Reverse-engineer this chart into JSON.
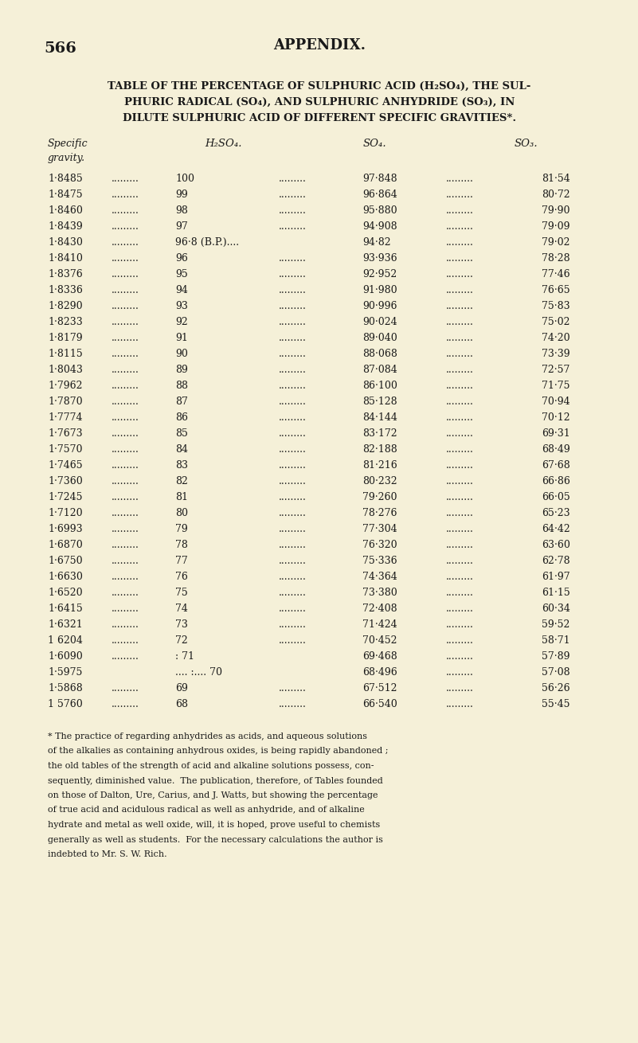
{
  "bg_color": "#f5f0d8",
  "text_color": "#1a1a1a",
  "page_number": "566",
  "header_center": "APPENDIX.",
  "title_line1": "TABLE OF THE PERCENTAGE OF SULPHURIC ACID (H₂SO₄), THE SUL-",
  "title_line2": "PHURIC RADICAL (SO₄), AND SULPHURIC ANHYDRIDE (SO₃), IN",
  "title_line3": "DILUTE SULPHURIC ACID OF DIFFERENT SPECIFIC GRAVITIES*.",
  "col_header0": "Specific\ngravity.",
  "col_header1": "H₂SO₄.",
  "col_header2": "SO₄.",
  "col_header3": "SO₃.",
  "rows": [
    [
      "1·8485",
      "100",
      "97·848",
      "81·54"
    ],
    [
      "1·8475",
      "99",
      "96·864",
      "80·72"
    ],
    [
      "1·8460",
      "98",
      "95·880",
      "79·90"
    ],
    [
      "1·8439",
      "97",
      "94·908",
      "79·09"
    ],
    [
      "1·8430",
      "96·8 (B.P.)....",
      "94·82",
      "79·02"
    ],
    [
      "1·8410",
      "96",
      "93·936",
      "78·28"
    ],
    [
      "1·8376",
      "95",
      "92·952",
      "77·46"
    ],
    [
      "1·8336",
      "94",
      "91·980",
      "76·65"
    ],
    [
      "1·8290",
      "93",
      "90·996",
      "75·83"
    ],
    [
      "1·8233",
      "92",
      "90·024",
      "75·02"
    ],
    [
      "1·8179",
      "91",
      "89·040",
      "74·20"
    ],
    [
      "1·8115",
      "90",
      "88·068",
      "73·39"
    ],
    [
      "1·8043",
      "89",
      "87·084",
      "72·57"
    ],
    [
      "1·7962",
      "88",
      "86·100",
      "71·75"
    ],
    [
      "1·7870",
      "87",
      "85·128",
      "70·94"
    ],
    [
      "1·7774",
      "86",
      "84·144",
      "70·12"
    ],
    [
      "1·7673",
      "85",
      "83·172",
      "69·31"
    ],
    [
      "1·7570",
      "84",
      "82·188",
      "68·49"
    ],
    [
      "1·7465",
      "83",
      "81·216",
      "67·68"
    ],
    [
      "1·7360",
      "82",
      "80·232",
      "66·86"
    ],
    [
      "1·7245",
      "81",
      "79·260",
      "66·05"
    ],
    [
      "1·7120",
      "80",
      "78·276",
      "65·23"
    ],
    [
      "1·6993",
      "79",
      "77·304",
      "64·42"
    ],
    [
      "1·6870",
      "78",
      "76·320",
      "63·60"
    ],
    [
      "1·6750",
      "77",
      "75·336",
      "62·78"
    ],
    [
      "1·6630",
      "76",
      "74·364",
      "61·97"
    ],
    [
      "1·6520",
      "75",
      "73·380",
      "61·15"
    ],
    [
      "1·6415",
      "74",
      "72·408",
      "60·34"
    ],
    [
      "1·6321",
      "73",
      "71·424",
      "59·52"
    ],
    [
      "1 6204",
      "72",
      "70·452",
      "58·71"
    ],
    [
      "1·6090",
      ": 71",
      "69·468",
      "57·89"
    ],
    [
      "1·5975",
      ".... :.... 70",
      "68·496",
      "57·08"
    ],
    [
      "1·5868",
      "69",
      "67·512",
      "56·26"
    ],
    [
      "1 5760",
      "68",
      "66·540",
      "55·45"
    ]
  ],
  "row_dots1": [
    true,
    true,
    true,
    true,
    true,
    true,
    true,
    true,
    true,
    true,
    true,
    true,
    true,
    true,
    true,
    true,
    true,
    true,
    true,
    true,
    true,
    true,
    true,
    true,
    true,
    true,
    true,
    true,
    true,
    true,
    true,
    false,
    true,
    true
  ],
  "row_dots2": [
    true,
    true,
    true,
    true,
    false,
    true,
    true,
    true,
    true,
    true,
    true,
    true,
    true,
    true,
    true,
    true,
    true,
    true,
    true,
    true,
    true,
    true,
    true,
    true,
    true,
    true,
    true,
    true,
    true,
    true,
    false,
    false,
    true,
    true
  ],
  "footnote": "* The practice of regarding anhydrides as acids, and aqueous solutions\nof the alkalies as containing anhydrous oxides, is being rapidly abandoned ;\nthe old tables of the strength of acid and alkaline solutions possess, con-\nsequently, diminished value.  The publication, therefore, of Tables founded\non those of Dalton, Ure, Carius, and J. Watts, but showing the percentage\nof true acid and acidulous radical as well as anhydride, and of alkaline\nhydrate and metal as well oxide, will, it is hoped, prove useful to chemists\ngenerally as well as students.  For the necessary calculations the author is\nindebted to Mr. S. W. Rich."
}
